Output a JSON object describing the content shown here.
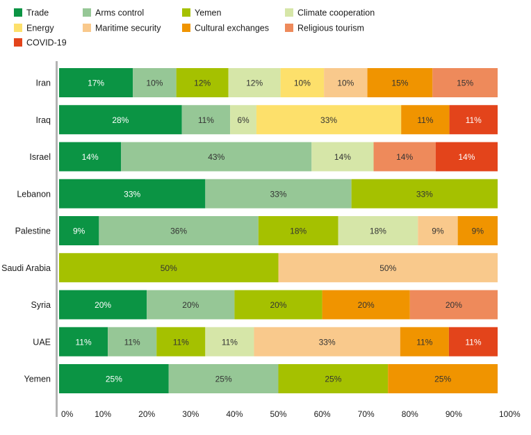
{
  "chart_data": {
    "type": "bar",
    "orientation": "horizontal",
    "stacked": true,
    "percent_stacked": true,
    "title": "",
    "xlabel": "",
    "ylabel": "",
    "xlim": [
      0,
      100
    ],
    "x_ticks": [
      "0%",
      "10%",
      "20%",
      "30%",
      "40%",
      "50%",
      "60%",
      "70%",
      "80%",
      "90%",
      "100%"
    ],
    "grid": false,
    "legend_position": "top-left",
    "categories": [
      "Iran",
      "Iraq",
      "Israel",
      "Lebanon",
      "Palestine",
      "Saudi Arabia",
      "Syria",
      "UAE",
      "Yemen"
    ],
    "series": [
      {
        "name": "Trade",
        "color": "#0b9444",
        "label_color": "#ffffff",
        "values": [
          17,
          28,
          14,
          33,
          9,
          0,
          20,
          11,
          25
        ],
        "labels": [
          "17%",
          "28%",
          "14%",
          "33%",
          "9%",
          "",
          "20%",
          "11%",
          "25%"
        ]
      },
      {
        "name": "Arms control",
        "color": "#96c796",
        "label_color": "#333333",
        "values": [
          10,
          11,
          43,
          33,
          36,
          0,
          20,
          11,
          25
        ],
        "labels": [
          "10%",
          "11%",
          "43%",
          "33%",
          "36%",
          "",
          "20%",
          "11%",
          "25%"
        ]
      },
      {
        "name": "Yemen",
        "color": "#a5c100",
        "label_color": "#333333",
        "values": [
          12,
          0,
          0,
          33,
          18,
          50,
          20,
          11,
          25
        ],
        "labels": [
          "12%",
          "",
          "",
          "33%",
          "18%",
          "50%",
          "20%",
          "11%",
          "25%"
        ]
      },
      {
        "name": "Climate cooperation",
        "color": "#d6e6a8",
        "label_color": "#333333",
        "values": [
          12,
          6,
          14,
          0,
          18,
          0,
          0,
          11,
          0
        ],
        "labels": [
          "12%",
          "6%",
          "14%",
          "",
          "18%",
          "",
          "",
          "11%",
          ""
        ]
      },
      {
        "name": "Energy",
        "color": "#fde06b",
        "label_color": "#333333",
        "values": [
          10,
          33,
          0,
          0,
          0,
          0,
          0,
          0,
          0
        ],
        "labels": [
          "10%",
          "33%",
          "",
          "",
          "",
          "",
          "",
          "",
          ""
        ]
      },
      {
        "name": "Maritime security",
        "color": "#f9c98c",
        "label_color": "#333333",
        "values": [
          10,
          0,
          0,
          0,
          9,
          50,
          0,
          33,
          0
        ],
        "labels": [
          "10%",
          "",
          "",
          "",
          "9%",
          "50%",
          "",
          "33%",
          ""
        ]
      },
      {
        "name": "Cultural exchanges",
        "color": "#f09400",
        "label_color": "#333333",
        "values": [
          15,
          11,
          0,
          0,
          9,
          0,
          20,
          11,
          25
        ],
        "labels": [
          "15%",
          "11%",
          "",
          "",
          "9%",
          "",
          "20%",
          "11%",
          "25%"
        ]
      },
      {
        "name": "Religious tourism",
        "color": "#ee8a5b",
        "label_color": "#333333",
        "values": [
          15,
          0,
          14,
          0,
          0,
          0,
          20,
          0,
          0
        ],
        "labels": [
          "15%",
          "",
          "14%",
          "",
          "",
          "",
          "20%",
          "",
          ""
        ]
      },
      {
        "name": "COVID-19",
        "color": "#e3441b",
        "label_color": "#ffffff",
        "values": [
          0,
          11,
          14,
          0,
          0,
          0,
          0,
          11,
          0
        ],
        "labels": [
          "",
          "11%",
          "14%",
          "",
          "",
          "",
          "",
          "11%",
          ""
        ]
      }
    ]
  }
}
